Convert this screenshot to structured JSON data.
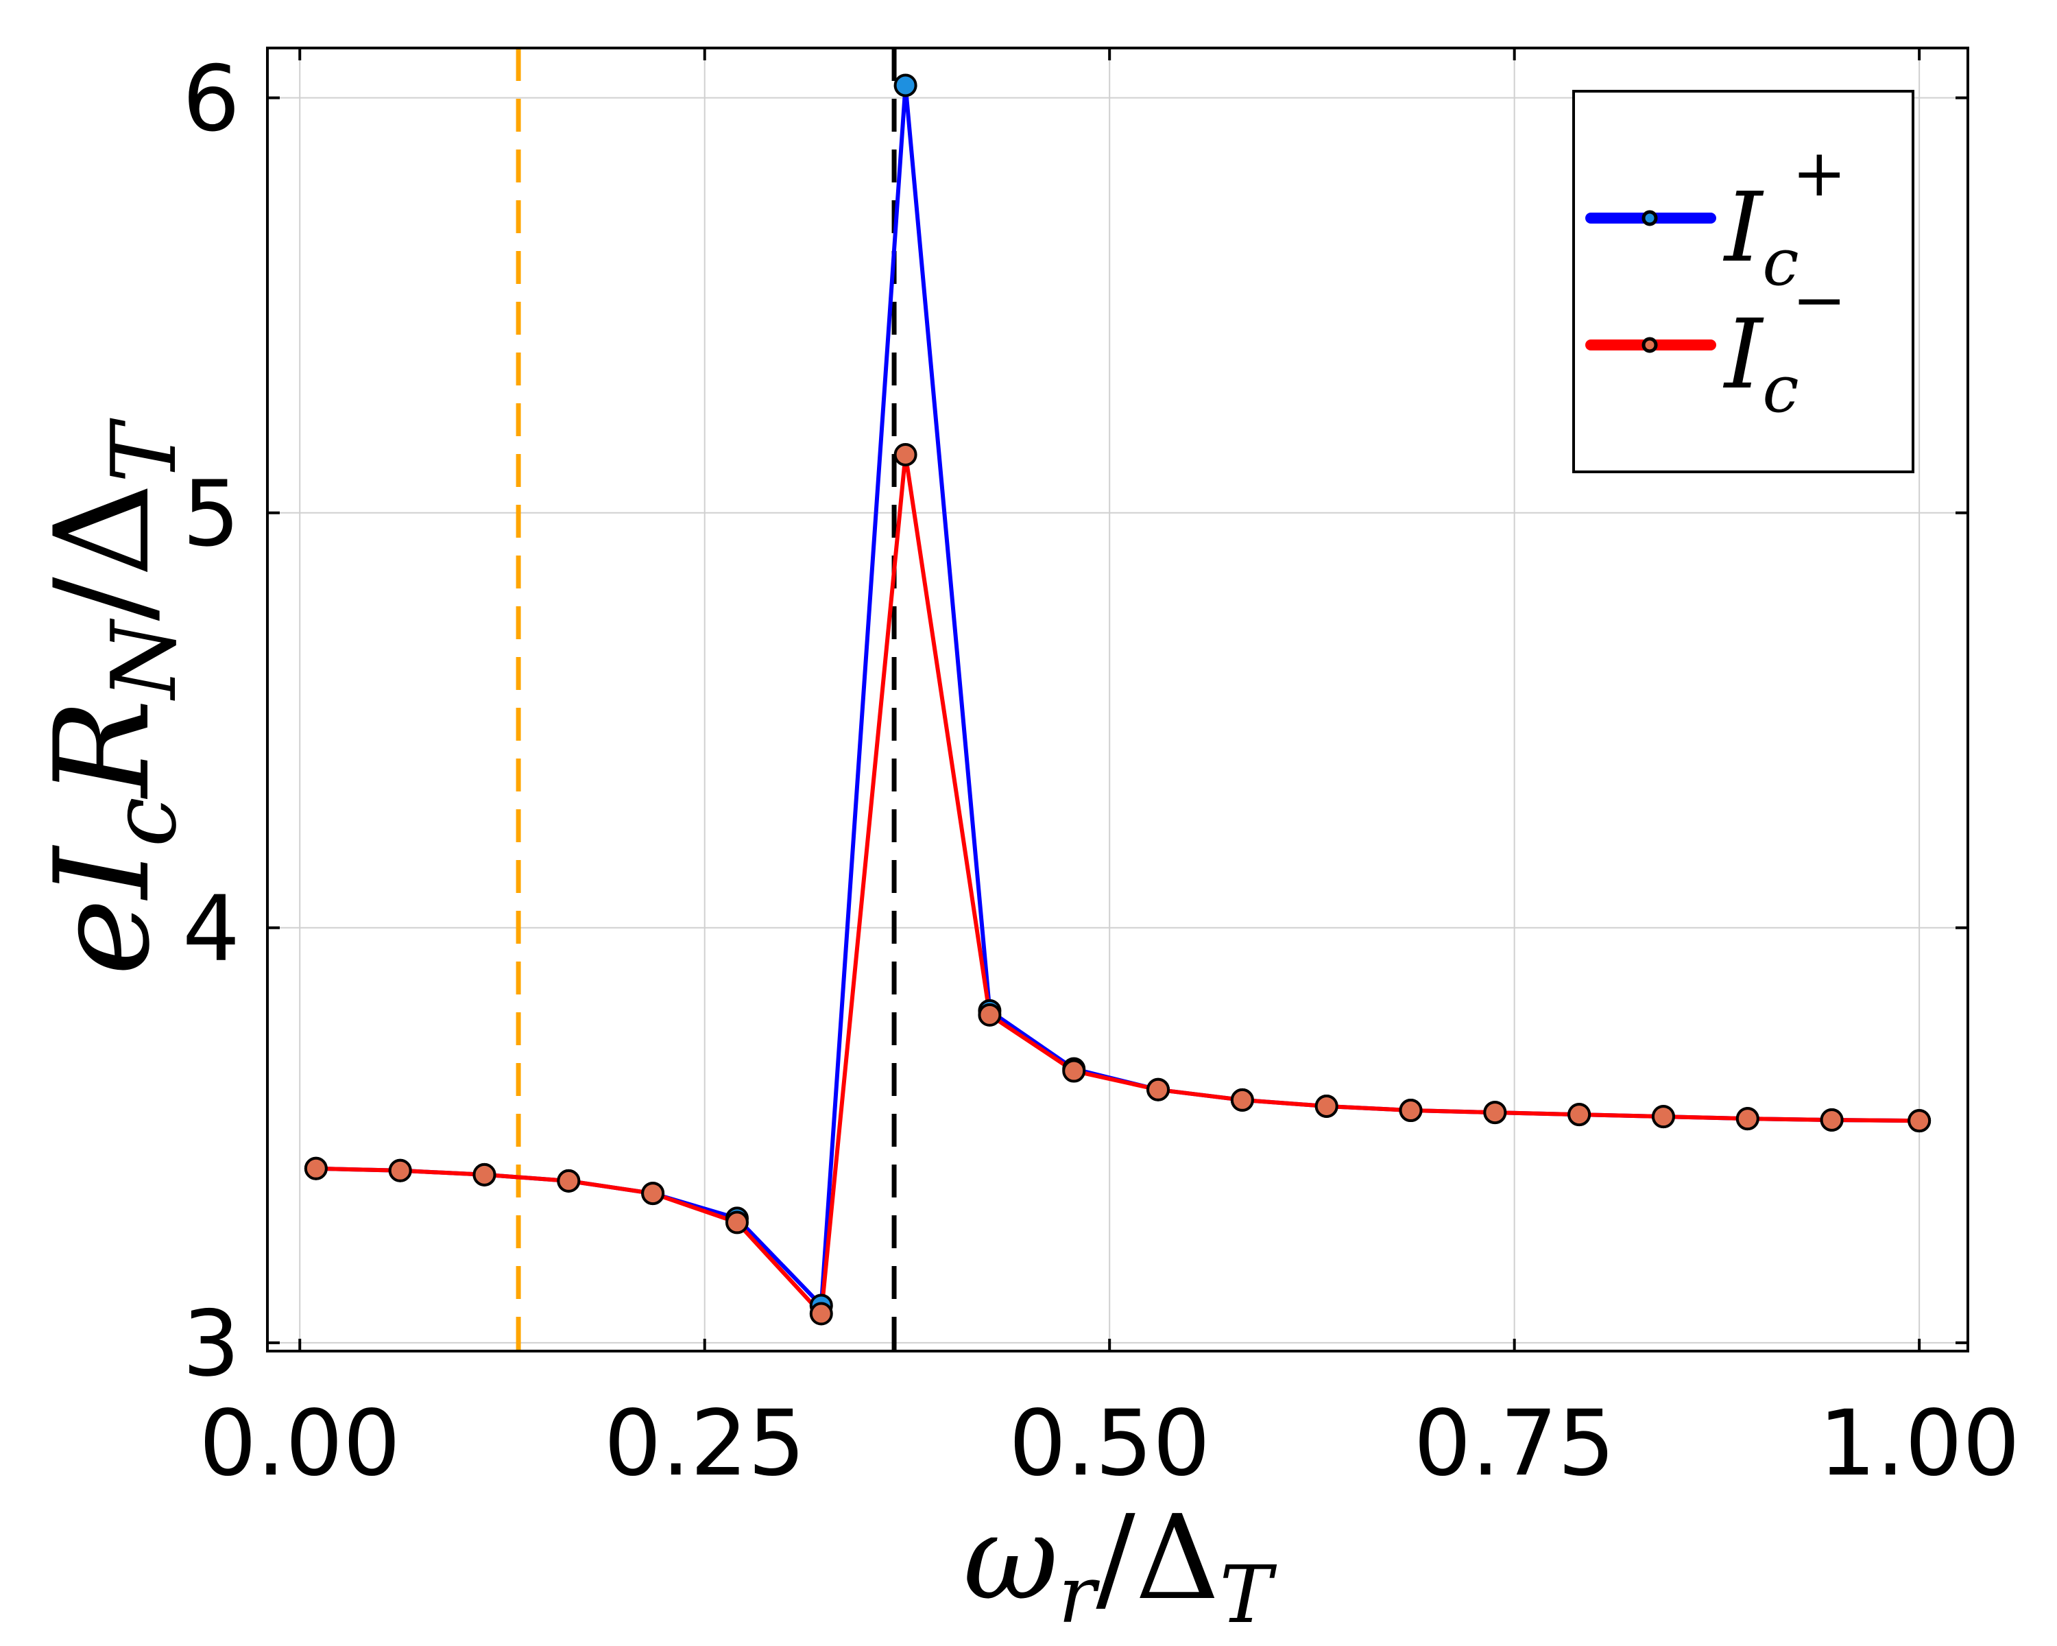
{
  "chart_data": {
    "type": "line",
    "title": "",
    "xlabel": {
      "base": "ω",
      "sub": "r",
      "sep": "/",
      "den": "Δ",
      "den_sub": "T"
    },
    "ylabel": {
      "e": "e",
      "I": "I",
      "c": "c",
      "R": "R",
      "N": "N",
      "sep": "/",
      "den": "Δ",
      "den_sub": "T"
    },
    "xlim": [
      -0.02,
      1.03
    ],
    "ylim": [
      2.98,
      6.12
    ],
    "xticks": [
      0.0,
      0.25,
      0.5,
      0.75,
      1.0
    ],
    "xtick_labels": [
      "0.00",
      "0.25",
      "0.50",
      "0.75",
      "1.00"
    ],
    "yticks": [
      3,
      4,
      5,
      6
    ],
    "ytick_labels": [
      "3",
      "4",
      "5",
      "6"
    ],
    "grid": true,
    "legend_position": "top-right",
    "vlines": [
      {
        "x": 0.135,
        "color": "#FFA500",
        "style": "dashed"
      },
      {
        "x": 0.367,
        "color": "#000000",
        "style": "dashed"
      }
    ],
    "x": [
      0.01,
      0.062,
      0.114,
      0.166,
      0.218,
      0.27,
      0.322,
      0.374,
      0.426,
      0.478,
      0.53,
      0.582,
      0.634,
      0.686,
      0.738,
      0.79,
      0.842,
      0.894,
      0.946,
      1.0
    ],
    "series": [
      {
        "name": "Ic+",
        "label_base": "I",
        "label_sub": "c",
        "label_sup": "+",
        "color": "#0000FF",
        "marker_color": "#1E90E0",
        "values": [
          3.42,
          3.415,
          3.405,
          3.39,
          3.36,
          3.3,
          3.09,
          6.03,
          3.8,
          3.66,
          3.61,
          3.585,
          3.57,
          3.56,
          3.555,
          3.55,
          3.545,
          3.54,
          3.537,
          3.535
        ]
      },
      {
        "name": "Ic-",
        "label_base": "I",
        "label_sub": "c",
        "label_sup": "−",
        "color": "#FF0000",
        "marker_color": "#E07050",
        "values": [
          3.42,
          3.415,
          3.405,
          3.39,
          3.36,
          3.29,
          3.07,
          5.14,
          3.79,
          3.655,
          3.61,
          3.585,
          3.57,
          3.56,
          3.555,
          3.55,
          3.545,
          3.54,
          3.537,
          3.535
        ]
      }
    ]
  }
}
